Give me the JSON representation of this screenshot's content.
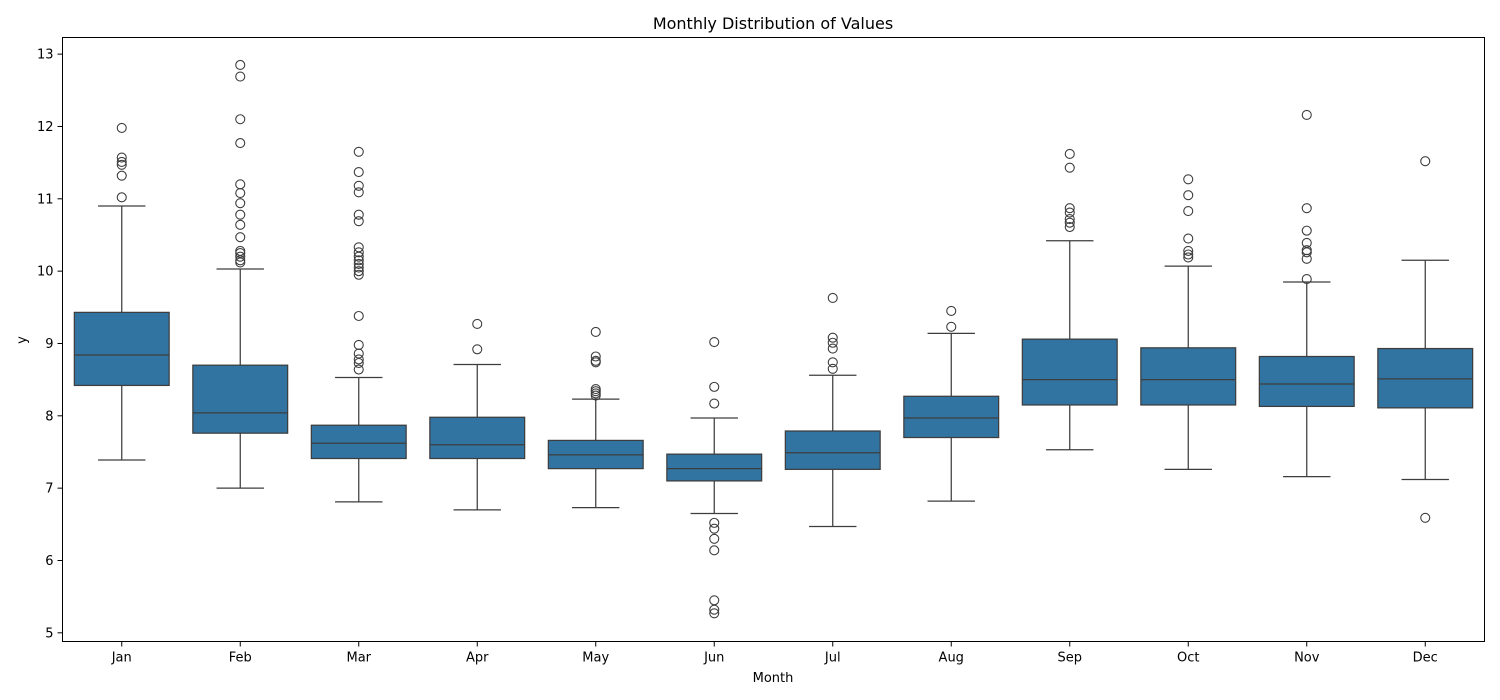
{
  "chart_data": {
    "type": "box",
    "title": "Monthly Distribution of Values",
    "xlabel": "Month",
    "ylabel": "y",
    "ylim": [
      4.88,
      13.23
    ],
    "yticks": [
      5,
      6,
      7,
      8,
      9,
      10,
      11,
      12,
      13
    ],
    "grid": false,
    "box_color": "#3274a1",
    "line_color": "#3d3d3d",
    "categories": [
      "Jan",
      "Feb",
      "Mar",
      "Apr",
      "May",
      "Jun",
      "Jul",
      "Aug",
      "Sep",
      "Oct",
      "Nov",
      "Dec"
    ],
    "boxes": [
      {
        "category": "Jan",
        "whisker_low": 7.39,
        "q1": 8.42,
        "median": 8.84,
        "q3": 9.43,
        "whisker_high": 10.9,
        "outliers": [
          11.02,
          11.32,
          11.47,
          11.51,
          11.57,
          11.98
        ]
      },
      {
        "category": "Feb",
        "whisker_low": 7.0,
        "q1": 7.76,
        "median": 8.04,
        "q3": 8.7,
        "whisker_high": 10.03,
        "outliers": [
          10.12,
          10.15,
          10.2,
          10.25,
          10.28,
          10.47,
          10.64,
          10.78,
          10.94,
          11.08,
          11.2,
          11.77,
          12.1,
          12.69,
          12.85
        ]
      },
      {
        "category": "Mar",
        "whisker_low": 6.81,
        "q1": 7.41,
        "median": 7.62,
        "q3": 7.87,
        "whisker_high": 8.53,
        "outliers": [
          8.64,
          8.73,
          8.78,
          8.86,
          8.98,
          9.38,
          9.95,
          10.0,
          10.05,
          10.1,
          10.15,
          10.2,
          10.26,
          10.33,
          10.69,
          10.78,
          11.09,
          11.18,
          11.37,
          11.65
        ]
      },
      {
        "category": "Apr",
        "whisker_low": 6.7,
        "q1": 7.41,
        "median": 7.6,
        "q3": 7.98,
        "whisker_high": 8.71,
        "outliers": [
          8.92,
          9.27
        ]
      },
      {
        "category": "May",
        "whisker_low": 6.73,
        "q1": 7.27,
        "median": 7.46,
        "q3": 7.66,
        "whisker_high": 8.23,
        "outliers": [
          8.28,
          8.31,
          8.34,
          8.37,
          8.74,
          8.76,
          8.82,
          9.16
        ]
      },
      {
        "category": "Jun",
        "whisker_low": 6.65,
        "q1": 7.1,
        "median": 7.27,
        "q3": 7.47,
        "whisker_high": 7.97,
        "outliers": [
          5.27,
          5.32,
          5.45,
          6.14,
          6.3,
          6.44,
          6.52,
          8.17,
          8.4,
          9.02
        ]
      },
      {
        "category": "Jul",
        "whisker_low": 6.47,
        "q1": 7.26,
        "median": 7.49,
        "q3": 7.79,
        "whisker_high": 8.56,
        "outliers": [
          8.65,
          8.74,
          8.93,
          9.01,
          9.08,
          9.63
        ]
      },
      {
        "category": "Aug",
        "whisker_low": 6.82,
        "q1": 7.7,
        "median": 7.97,
        "q3": 8.27,
        "whisker_high": 9.14,
        "outliers": [
          9.23,
          9.45
        ]
      },
      {
        "category": "Sep",
        "whisker_low": 7.53,
        "q1": 8.15,
        "median": 8.5,
        "q3": 9.06,
        "whisker_high": 10.42,
        "outliers": [
          10.61,
          10.67,
          10.72,
          10.81,
          10.87,
          11.43,
          11.62
        ]
      },
      {
        "category": "Oct",
        "whisker_low": 7.26,
        "q1": 8.15,
        "median": 8.5,
        "q3": 8.94,
        "whisker_high": 10.07,
        "outliers": [
          10.19,
          10.23,
          10.28,
          10.45,
          10.83,
          11.05,
          11.27
        ]
      },
      {
        "category": "Nov",
        "whisker_low": 7.16,
        "q1": 8.13,
        "median": 8.44,
        "q3": 8.82,
        "whisker_high": 9.85,
        "outliers": [
          9.89,
          10.17,
          10.26,
          10.29,
          10.39,
          10.56,
          10.87,
          12.16
        ]
      },
      {
        "category": "Dec",
        "whisker_low": 7.12,
        "q1": 8.11,
        "median": 8.51,
        "q3": 8.93,
        "whisker_high": 10.15,
        "outliers": [
          6.59,
          11.52
        ]
      }
    ]
  }
}
